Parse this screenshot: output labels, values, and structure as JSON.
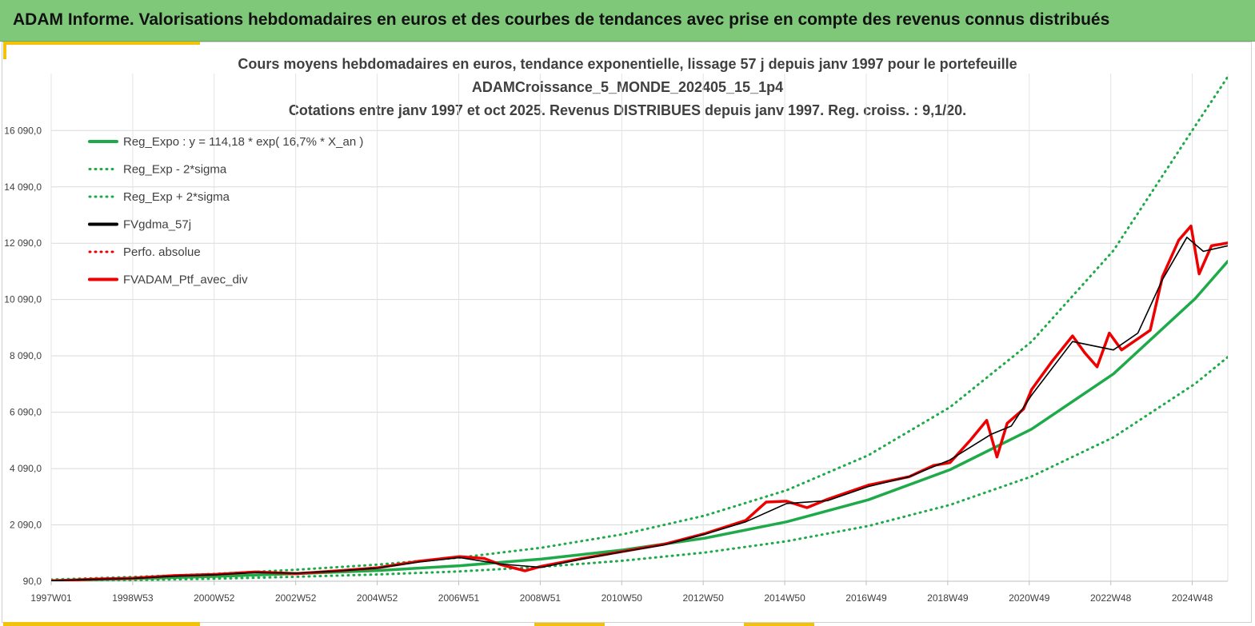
{
  "banner": {
    "title": "ADAM Informe. Valorisations hebdomadaires en euros et des courbes de tendances avec prise en compte des revenus connus distribués"
  },
  "colors": {
    "banner_bg": "#7fc87a",
    "accent_yellow": "#f2c20a",
    "trend_green": "#1faa4a",
    "fv_black": "#000000",
    "ptf_red": "#ee0000"
  },
  "chart_data": {
    "type": "line",
    "title_lines": [
      "Cours moyens hebdomadaires  en euros, tendance exponentielle, lissage 57 j depuis janv 1997 pour le portefeuille",
      "ADAMCroissance_5_MONDE_202405_15_1p4",
      "Cotations  entre janv 1997 et oct 2025. Revenus DISTRIBUES depuis janv 1997. Reg. croiss. : 9,1/20."
    ],
    "x_ticks": [
      "1997W01",
      "1998W53",
      "2000W52",
      "2002W52",
      "2004W52",
      "2006W51",
      "2008W51",
      "2010W50",
      "2012W50",
      "2014W50",
      "2016W49",
      "2018W49",
      "2020W49",
      "2022W48",
      "2024W48"
    ],
    "x_range": [
      1997.0,
      2025.8
    ],
    "y_ticks": [
      "90,0",
      "2 090,0",
      "4 090,0",
      "6 090,0",
      "8 090,0",
      "10 090,0",
      "12 090,0",
      "14 090,0",
      "16 090,0"
    ],
    "y_tick_values": [
      90,
      2090,
      4090,
      6090,
      8090,
      10090,
      12090,
      14090,
      16090
    ],
    "ylim": [
      90,
      18000
    ],
    "grid": true,
    "legend_position": "top-left",
    "legend": [
      {
        "label": "Reg_Expo : y = 114,18 * exp( 16,7% *  X_an )",
        "color": "#1faa4a",
        "style": "solid"
      },
      {
        "label": "Reg_Exp - 2*sigma",
        "color": "#1faa4a",
        "style": "dotted"
      },
      {
        "label": "Reg_Exp + 2*sigma",
        "color": "#1faa4a",
        "style": "dotted"
      },
      {
        "label": "FVgdma_57j",
        "color": "#000000",
        "style": "solid"
      },
      {
        "label": "Perfo. absolue",
        "color": "#ee0000",
        "style": "dotted"
      },
      {
        "label": "FVADAM_Ptf_avec_div",
        "color": "#ee0000",
        "style": "solid"
      }
    ],
    "series": [
      {
        "name": "Reg_Expo : y = 114,18 * exp( 16,7% *  X_an )",
        "color": "#1faa4a",
        "style": "solid",
        "x": [
          1997.0,
          1999.0,
          2001.0,
          2003.0,
          2005.0,
          2007.0,
          2009.0,
          2011.0,
          2013.0,
          2015.0,
          2017.0,
          2019.0,
          2021.0,
          2023.0,
          2025.0,
          2025.8
        ],
        "y": [
          110,
          180,
          260,
          360,
          470,
          640,
          880,
          1200,
          1620,
          2200,
          2980,
          4050,
          5490,
          7450,
          10120,
          11450
        ]
      },
      {
        "name": "Reg_Exp - 2*sigma",
        "color": "#1faa4a",
        "style": "dotted",
        "x": [
          1997.0,
          1999.0,
          2001.0,
          2003.0,
          2005.0,
          2007.0,
          2009.0,
          2011.0,
          2013.0,
          2015.0,
          2017.0,
          2019.0,
          2021.0,
          2023.0,
          2025.0,
          2025.8
        ],
        "y": [
          90,
          130,
          180,
          250,
          330,
          440,
          600,
          820,
          1110,
          1510,
          2050,
          2800,
          3810,
          5200,
          7100,
          8050
        ]
      },
      {
        "name": "Reg_Exp + 2*sigma",
        "color": "#1faa4a",
        "style": "dotted",
        "x": [
          1997.0,
          1999.0,
          2001.0,
          2003.0,
          2005.0,
          2007.0,
          2009.0,
          2011.0,
          2013.0,
          2015.0,
          2017.0,
          2019.0,
          2021.0,
          2023.0,
          2025.0,
          2025.8
        ],
        "y": [
          150,
          240,
          350,
          500,
          680,
          930,
          1280,
          1760,
          2420,
          3320,
          4560,
          6270,
          8600,
          11830,
          16250,
          18000
        ]
      },
      {
        "name": "FVADAM_Ptf_avec_div",
        "color": "#ee0000",
        "style": "solid",
        "x": [
          1997.0,
          1998.0,
          1999.0,
          2000.0,
          2001.0,
          2002.0,
          2003.0,
          2004.0,
          2005.0,
          2006.0,
          2007.0,
          2007.6,
          2008.0,
          2008.6,
          2009.0,
          2010.0,
          2011.0,
          2012.0,
          2013.0,
          2014.0,
          2014.5,
          2015.0,
          2015.5,
          2016.0,
          2017.0,
          2018.0,
          2018.6,
          2019.0,
          2019.5,
          2019.9,
          2020.15,
          2020.4,
          2020.8,
          2021.0,
          2021.5,
          2022.0,
          2022.3,
          2022.6,
          2022.9,
          2023.2,
          2023.6,
          2023.9,
          2024.2,
          2024.6,
          2024.9,
          2025.1,
          2025.4,
          2025.8
        ],
        "y": [
          100,
          160,
          200,
          290,
          330,
          420,
          360,
          460,
          570,
          800,
          960,
          900,
          680,
          460,
          620,
          900,
          1150,
          1400,
          1780,
          2250,
          2900,
          2930,
          2700,
          3000,
          3500,
          3800,
          4200,
          4300,
          5100,
          5800,
          4500,
          5700,
          6200,
          6900,
          7900,
          8800,
          8200,
          7700,
          8900,
          8300,
          8700,
          9000,
          10900,
          12200,
          12700,
          11000,
          12000,
          12100
        ]
      },
      {
        "name": "FVgdma_57j",
        "color": "#000000",
        "style": "solid",
        "x": [
          1997.0,
          1998.0,
          1999.0,
          2000.0,
          2001.0,
          2002.0,
          2003.0,
          2004.0,
          2005.0,
          2006.0,
          2007.0,
          2008.0,
          2009.0,
          2010.0,
          2011.0,
          2012.0,
          2013.0,
          2014.0,
          2015.0,
          2016.0,
          2017.0,
          2018.0,
          2019.0,
          2020.0,
          2020.5,
          2021.0,
          2022.0,
          2023.0,
          2023.6,
          2024.2,
          2024.8,
          2025.2,
          2025.8
        ],
        "y": [
          100,
          155,
          190,
          270,
          320,
          400,
          380,
          450,
          560,
          770,
          930,
          700,
          580,
          880,
          1140,
          1380,
          1760,
          2200,
          2850,
          2950,
          3450,
          3800,
          4400,
          5300,
          5600,
          6700,
          8600,
          8300,
          8900,
          10800,
          12300,
          11800,
          12000
        ]
      }
    ]
  }
}
